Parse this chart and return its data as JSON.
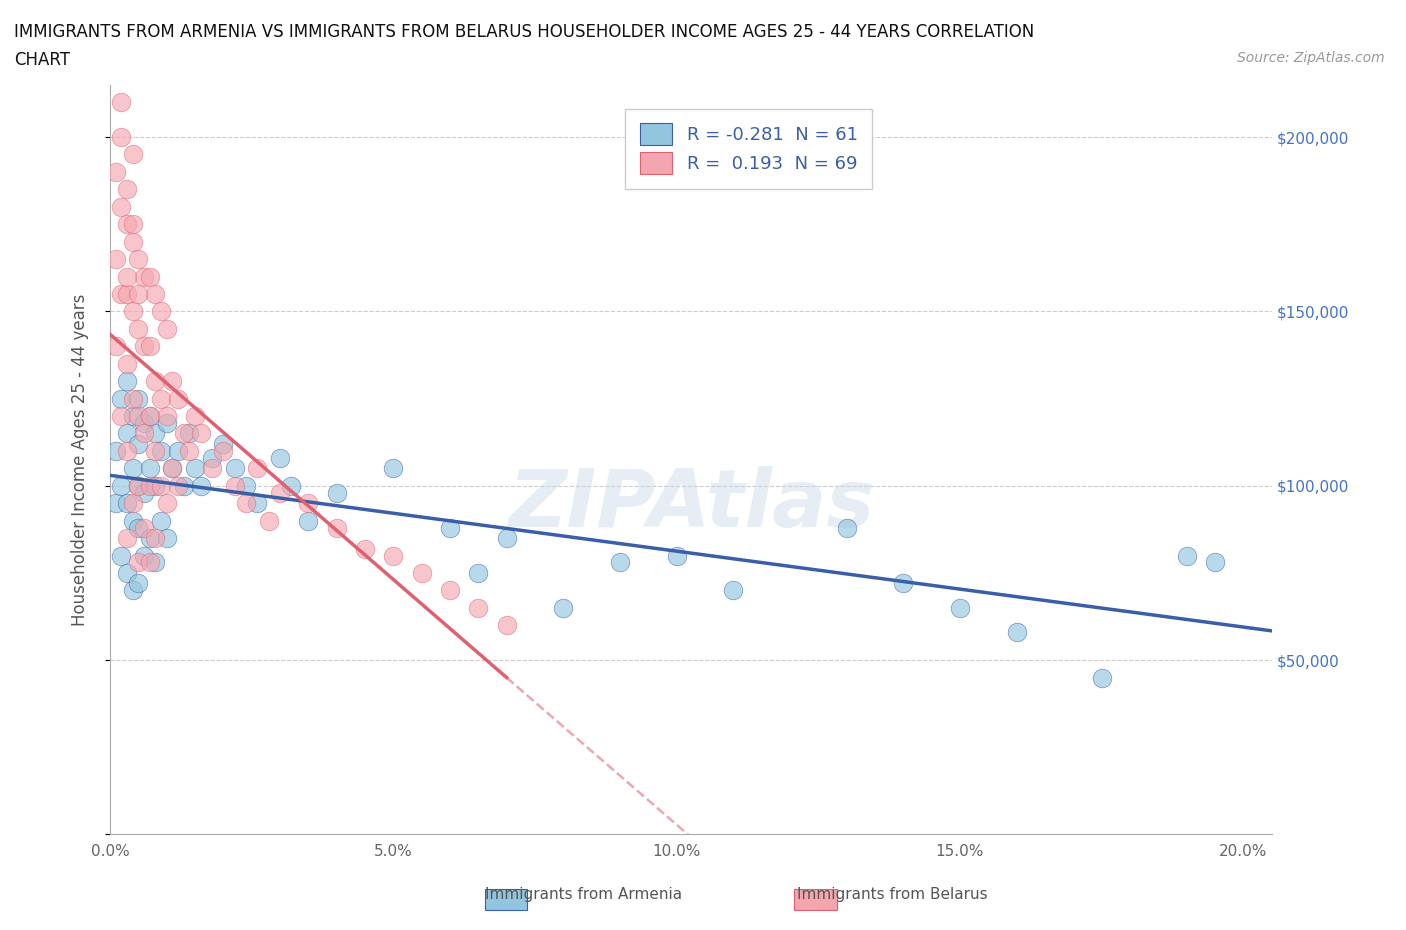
{
  "title_line1": "IMMIGRANTS FROM ARMENIA VS IMMIGRANTS FROM BELARUS HOUSEHOLDER INCOME AGES 25 - 44 YEARS CORRELATION",
  "title_line2": "CHART",
  "source_text": "Source: ZipAtlas.com",
  "ylabel": "Householder Income Ages 25 - 44 years",
  "xlim": [
    0,
    0.205
  ],
  "ylim": [
    0,
    215000
  ],
  "yticks": [
    0,
    50000,
    100000,
    150000,
    200000
  ],
  "ytick_labels": [
    "",
    "$50,000",
    "$100,000",
    "$150,000",
    "$200,000"
  ],
  "xticks": [
    0.0,
    0.05,
    0.1,
    0.15,
    0.2
  ],
  "xtick_labels": [
    "0.0%",
    "5.0%",
    "10.0%",
    "15.0%",
    "20.0%"
  ],
  "armenia_color": "#92c5de",
  "belarus_color": "#f4a6b0",
  "armenia_line_color": "#3a5fa8",
  "belarus_line_color": "#e06070",
  "R_armenia": -0.281,
  "N_armenia": 61,
  "R_belarus": 0.193,
  "N_belarus": 69,
  "watermark": "ZIPAtlas",
  "watermark_color": "#c8d8e8",
  "legend_label_armenia": "Immigrants from Armenia",
  "legend_label_belarus": "Immigrants from Belarus",
  "armenia_x": [
    0.001,
    0.001,
    0.002,
    0.002,
    0.002,
    0.003,
    0.003,
    0.003,
    0.003,
    0.004,
    0.004,
    0.004,
    0.004,
    0.005,
    0.005,
    0.005,
    0.005,
    0.005,
    0.006,
    0.006,
    0.006,
    0.007,
    0.007,
    0.007,
    0.008,
    0.008,
    0.008,
    0.009,
    0.009,
    0.01,
    0.01,
    0.011,
    0.012,
    0.013,
    0.014,
    0.015,
    0.016,
    0.018,
    0.02,
    0.022,
    0.024,
    0.026,
    0.03,
    0.032,
    0.035,
    0.04,
    0.05,
    0.06,
    0.065,
    0.07,
    0.08,
    0.09,
    0.1,
    0.11,
    0.13,
    0.14,
    0.15,
    0.16,
    0.175,
    0.19,
    0.195
  ],
  "armenia_y": [
    110000,
    95000,
    125000,
    100000,
    80000,
    130000,
    115000,
    95000,
    75000,
    120000,
    105000,
    90000,
    70000,
    125000,
    112000,
    100000,
    88000,
    72000,
    118000,
    98000,
    80000,
    120000,
    105000,
    85000,
    115000,
    100000,
    78000,
    110000,
    90000,
    118000,
    85000,
    105000,
    110000,
    100000,
    115000,
    105000,
    100000,
    108000,
    112000,
    105000,
    100000,
    95000,
    108000,
    100000,
    90000,
    98000,
    105000,
    88000,
    75000,
    85000,
    65000,
    78000,
    80000,
    70000,
    88000,
    72000,
    65000,
    58000,
    45000,
    80000,
    78000
  ],
  "belarus_x": [
    0.001,
    0.001,
    0.001,
    0.002,
    0.002,
    0.002,
    0.002,
    0.003,
    0.003,
    0.003,
    0.003,
    0.003,
    0.004,
    0.004,
    0.004,
    0.004,
    0.005,
    0.005,
    0.005,
    0.005,
    0.005,
    0.006,
    0.006,
    0.006,
    0.006,
    0.007,
    0.007,
    0.007,
    0.007,
    0.007,
    0.008,
    0.008,
    0.008,
    0.008,
    0.009,
    0.009,
    0.009,
    0.01,
    0.01,
    0.01,
    0.011,
    0.011,
    0.012,
    0.012,
    0.013,
    0.014,
    0.015,
    0.016,
    0.018,
    0.02,
    0.022,
    0.024,
    0.026,
    0.028,
    0.03,
    0.035,
    0.04,
    0.045,
    0.05,
    0.055,
    0.06,
    0.065,
    0.07,
    0.002,
    0.003,
    0.004,
    0.003,
    0.004,
    0.005
  ],
  "belarus_y": [
    190000,
    165000,
    140000,
    200000,
    180000,
    155000,
    120000,
    175000,
    155000,
    135000,
    110000,
    85000,
    170000,
    150000,
    125000,
    95000,
    165000,
    145000,
    120000,
    100000,
    78000,
    160000,
    140000,
    115000,
    88000,
    160000,
    140000,
    120000,
    100000,
    78000,
    155000,
    130000,
    110000,
    85000,
    150000,
    125000,
    100000,
    145000,
    120000,
    95000,
    130000,
    105000,
    125000,
    100000,
    115000,
    110000,
    120000,
    115000,
    105000,
    110000,
    100000,
    95000,
    105000,
    90000,
    98000,
    95000,
    88000,
    82000,
    80000,
    75000,
    70000,
    65000,
    60000,
    210000,
    185000,
    195000,
    160000,
    175000,
    155000
  ]
}
